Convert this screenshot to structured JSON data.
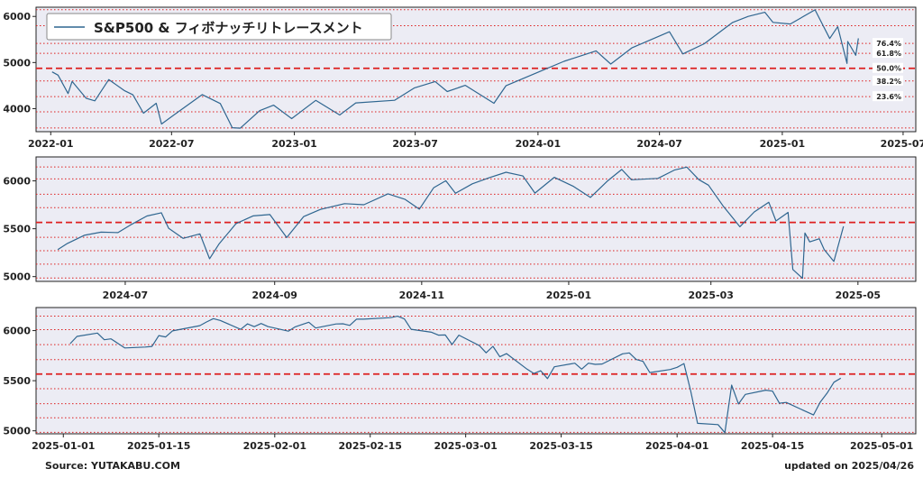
{
  "colors": {
    "line": "#2f6690",
    "level_line": "#dd1f1f",
    "panel_bg": "#ececf4"
  },
  "footer": {
    "source": "Source: YUTAKABU.COM",
    "updated": "updated on 2025/04/26"
  },
  "retracement_levels": [
    {
      "label": "76.4%",
      "value": 5414
    },
    {
      "label": "61.8%",
      "value": 5200
    },
    {
      "label": "50.0%",
      "value": 4875
    },
    {
      "label": "38.2%",
      "value": 4600
    },
    {
      "label": "23.6%",
      "value": 4260
    }
  ],
  "chart_data": [
    {
      "type": "line",
      "legend": "S&P500 & フィボナッチリトレースメント",
      "legend_position": "top-left",
      "xlim": [
        "2021-12-10",
        "2025-07-20"
      ],
      "ylim": [
        3500,
        6200
      ],
      "xticks": [
        {
          "date": "2022-01-01",
          "label": "2022-01"
        },
        {
          "date": "2022-07-01",
          "label": "2022-07"
        },
        {
          "date": "2023-01-01",
          "label": "2023-01"
        },
        {
          "date": "2023-07-01",
          "label": "2023-07"
        },
        {
          "date": "2024-01-01",
          "label": "2024-01"
        },
        {
          "date": "2024-07-01",
          "label": "2024-07"
        },
        {
          "date": "2025-01-01",
          "label": "2025-01"
        },
        {
          "date": "2025-07-01",
          "label": "2025-07"
        }
      ],
      "yticks": [
        4000,
        5000,
        6000
      ],
      "hlines": [
        {
          "value": 4875,
          "style": "dashed"
        },
        {
          "value": 5414,
          "style": "dotted"
        },
        {
          "value": 5200,
          "style": "dotted"
        },
        {
          "value": 4600,
          "style": "dotted"
        },
        {
          "value": 4260,
          "style": "dotted"
        },
        {
          "value": 6145,
          "style": "dotted"
        },
        {
          "value": 5800,
          "style": "dotted"
        },
        {
          "value": 3930,
          "style": "dotted"
        },
        {
          "value": 3580,
          "style": "dotted"
        }
      ],
      "level_labels": true,
      "points": [
        [
          "2022-01-03",
          4797
        ],
        [
          "2022-01-12",
          4726
        ],
        [
          "2022-01-27",
          4327
        ],
        [
          "2022-02-02",
          4589
        ],
        [
          "2022-02-23",
          4225
        ],
        [
          "2022-03-08",
          4170
        ],
        [
          "2022-03-29",
          4631
        ],
        [
          "2022-04-21",
          4394
        ],
        [
          "2022-05-04",
          4300
        ],
        [
          "2022-05-20",
          3901
        ],
        [
          "2022-06-08",
          4116
        ],
        [
          "2022-06-16",
          3667
        ],
        [
          "2022-07-08",
          3899
        ],
        [
          "2022-08-16",
          4305
        ],
        [
          "2022-09-12",
          4110
        ],
        [
          "2022-09-30",
          3586
        ],
        [
          "2022-10-12",
          3577
        ],
        [
          "2022-11-10",
          3956
        ],
        [
          "2022-12-01",
          4076
        ],
        [
          "2022-12-28",
          3783
        ],
        [
          "2023-02-02",
          4179
        ],
        [
          "2023-03-10",
          3861
        ],
        [
          "2023-04-03",
          4125
        ],
        [
          "2023-05-31",
          4180
        ],
        [
          "2023-06-30",
          4450
        ],
        [
          "2023-07-31",
          4588
        ],
        [
          "2023-08-18",
          4370
        ],
        [
          "2023-09-14",
          4505
        ],
        [
          "2023-10-27",
          4117
        ],
        [
          "2023-11-14",
          4496
        ],
        [
          "2023-12-29",
          4770
        ],
        [
          "2024-02-09",
          5027
        ],
        [
          "2024-03-28",
          5254
        ],
        [
          "2024-04-19",
          4967
        ],
        [
          "2024-05-21",
          5321
        ],
        [
          "2024-07-16",
          5667
        ],
        [
          "2024-08-05",
          5186
        ],
        [
          "2024-09-06",
          5408
        ],
        [
          "2024-10-18",
          5865
        ],
        [
          "2024-11-11",
          6001
        ],
        [
          "2024-12-06",
          6090
        ],
        [
          "2024-12-18",
          5872
        ],
        [
          "2025-01-13",
          5836
        ],
        [
          "2025-02-19",
          6144
        ],
        [
          "2025-03-13",
          5521
        ],
        [
          "2025-03-25",
          5777
        ],
        [
          "2025-04-08",
          4982
        ],
        [
          "2025-04-09",
          5456
        ],
        [
          "2025-04-21",
          5158
        ],
        [
          "2025-04-25",
          5525
        ]
      ]
    },
    {
      "type": "line",
      "xlim": [
        "2024-05-25",
        "2025-05-25"
      ],
      "ylim": [
        4950,
        6250
      ],
      "xticks": [
        {
          "date": "2024-07-01",
          "label": "2024-07"
        },
        {
          "date": "2024-09-01",
          "label": "2024-09"
        },
        {
          "date": "2024-11-01",
          "label": "2024-11"
        },
        {
          "date": "2025-01-01",
          "label": "2025-01"
        },
        {
          "date": "2025-03-01",
          "label": "2025-03"
        },
        {
          "date": "2025-05-01",
          "label": "2025-05"
        }
      ],
      "yticks": [
        5000,
        5500,
        6000
      ],
      "hlines": [
        {
          "value": 5566,
          "style": "dashed"
        },
        {
          "value": 6145,
          "style": "dotted"
        },
        {
          "value": 6020,
          "style": "dotted"
        },
        {
          "value": 5860,
          "style": "dotted"
        },
        {
          "value": 5720,
          "style": "dotted"
        },
        {
          "value": 5410,
          "style": "dotted"
        },
        {
          "value": 5270,
          "style": "dotted"
        },
        {
          "value": 5130,
          "style": "dotted"
        },
        {
          "value": 4985,
          "style": "dotted"
        }
      ],
      "points": [
        [
          "2024-06-03",
          5283
        ],
        [
          "2024-06-07",
          5347
        ],
        [
          "2024-06-14",
          5431
        ],
        [
          "2024-06-21",
          5464
        ],
        [
          "2024-06-28",
          5460
        ],
        [
          "2024-07-03",
          5537
        ],
        [
          "2024-07-10",
          5633
        ],
        [
          "2024-07-16",
          5667
        ],
        [
          "2024-07-19",
          5505
        ],
        [
          "2024-07-25",
          5399
        ],
        [
          "2024-08-01",
          5446
        ],
        [
          "2024-08-05",
          5186
        ],
        [
          "2024-08-09",
          5344
        ],
        [
          "2024-08-16",
          5554
        ],
        [
          "2024-08-23",
          5634
        ],
        [
          "2024-08-30",
          5648
        ],
        [
          "2024-09-06",
          5408
        ],
        [
          "2024-09-13",
          5626
        ],
        [
          "2024-09-20",
          5702
        ],
        [
          "2024-09-30",
          5762
        ],
        [
          "2024-10-08",
          5751
        ],
        [
          "2024-10-18",
          5865
        ],
        [
          "2024-10-25",
          5808
        ],
        [
          "2024-10-31",
          5705
        ],
        [
          "2024-11-06",
          5929
        ],
        [
          "2024-11-11",
          6001
        ],
        [
          "2024-11-15",
          5870
        ],
        [
          "2024-11-22",
          5969
        ],
        [
          "2024-11-29",
          6032
        ],
        [
          "2024-12-06",
          6090
        ],
        [
          "2024-12-13",
          6051
        ],
        [
          "2024-12-18",
          5872
        ],
        [
          "2024-12-26",
          6037
        ],
        [
          "2025-01-03",
          5942
        ],
        [
          "2025-01-10",
          5827
        ],
        [
          "2025-01-17",
          5997
        ],
        [
          "2025-01-23",
          6119
        ],
        [
          "2025-01-27",
          6012
        ],
        [
          "2025-02-07",
          6026
        ],
        [
          "2025-02-14",
          6114
        ],
        [
          "2025-02-19",
          6144
        ],
        [
          "2025-02-24",
          6013
        ],
        [
          "2025-02-28",
          5955
        ],
        [
          "2025-03-06",
          5739
        ],
        [
          "2025-03-10",
          5615
        ],
        [
          "2025-03-13",
          5521
        ],
        [
          "2025-03-19",
          5675
        ],
        [
          "2025-03-25",
          5777
        ],
        [
          "2025-03-28",
          5581
        ],
        [
          "2025-04-02",
          5671
        ],
        [
          "2025-04-04",
          5074
        ],
        [
          "2025-04-08",
          4982
        ],
        [
          "2025-04-09",
          5456
        ],
        [
          "2025-04-11",
          5363
        ],
        [
          "2025-04-15",
          5396
        ],
        [
          "2025-04-17",
          5283
        ],
        [
          "2025-04-21",
          5158
        ],
        [
          "2025-04-25",
          5525
        ]
      ]
    },
    {
      "type": "line",
      "xlim": [
        "2024-12-28",
        "2025-05-06"
      ],
      "ylim": [
        4970,
        6230
      ],
      "xticks": [
        {
          "date": "2025-01-01",
          "label": "2025-01-01"
        },
        {
          "date": "2025-01-15",
          "label": "2025-01-15"
        },
        {
          "date": "2025-02-01",
          "label": "2025-02-01"
        },
        {
          "date": "2025-02-15",
          "label": "2025-02-15"
        },
        {
          "date": "2025-03-01",
          "label": "2025-03-01"
        },
        {
          "date": "2025-03-15",
          "label": "2025-03-15"
        },
        {
          "date": "2025-04-01",
          "label": "2025-04-01"
        },
        {
          "date": "2025-04-15",
          "label": "2025-04-15"
        },
        {
          "date": "2025-05-01",
          "label": "2025-05-01"
        }
      ],
      "yticks": [
        5000,
        5500,
        6000
      ],
      "hlines": [
        {
          "value": 5566,
          "style": "dashed"
        },
        {
          "value": 6145,
          "style": "dotted"
        },
        {
          "value": 6010,
          "style": "dotted"
        },
        {
          "value": 5860,
          "style": "dotted"
        },
        {
          "value": 5710,
          "style": "dotted"
        },
        {
          "value": 5420,
          "style": "dotted"
        },
        {
          "value": 5270,
          "style": "dotted"
        },
        {
          "value": 5130,
          "style": "dotted"
        },
        {
          "value": 4985,
          "style": "dotted"
        }
      ],
      "points": [
        [
          "2025-01-02",
          5869
        ],
        [
          "2025-01-03",
          5942
        ],
        [
          "2025-01-06",
          5975
        ],
        [
          "2025-01-07",
          5909
        ],
        [
          "2025-01-08",
          5918
        ],
        [
          "2025-01-10",
          5827
        ],
        [
          "2025-01-13",
          5836
        ],
        [
          "2025-01-14",
          5842
        ],
        [
          "2025-01-15",
          5950
        ],
        [
          "2025-01-16",
          5937
        ],
        [
          "2025-01-17",
          5997
        ],
        [
          "2025-01-21",
          6049
        ],
        [
          "2025-01-22",
          6086
        ],
        [
          "2025-01-23",
          6119
        ],
        [
          "2025-01-24",
          6101
        ],
        [
          "2025-01-27",
          6012
        ],
        [
          "2025-01-28",
          6067
        ],
        [
          "2025-01-29",
          6039
        ],
        [
          "2025-01-30",
          6071
        ],
        [
          "2025-01-31",
          6040
        ],
        [
          "2025-02-03",
          5994
        ],
        [
          "2025-02-04",
          6037
        ],
        [
          "2025-02-05",
          6061
        ],
        [
          "2025-02-06",
          6083
        ],
        [
          "2025-02-07",
          6026
        ],
        [
          "2025-02-10",
          6066
        ],
        [
          "2025-02-11",
          6068
        ],
        [
          "2025-02-12",
          6052
        ],
        [
          "2025-02-13",
          6115
        ],
        [
          "2025-02-14",
          6114
        ],
        [
          "2025-02-18",
          6129
        ],
        [
          "2025-02-19",
          6144
        ],
        [
          "2025-02-20",
          6117
        ],
        [
          "2025-02-21",
          6013
        ],
        [
          "2025-02-24",
          5983
        ],
        [
          "2025-02-25",
          5955
        ],
        [
          "2025-02-26",
          5956
        ],
        [
          "2025-02-27",
          5861
        ],
        [
          "2025-02-28",
          5955
        ],
        [
          "2025-03-03",
          5850
        ],
        [
          "2025-03-04",
          5778
        ],
        [
          "2025-03-05",
          5843
        ],
        [
          "2025-03-06",
          5739
        ],
        [
          "2025-03-07",
          5770
        ],
        [
          "2025-03-10",
          5615
        ],
        [
          "2025-03-11",
          5572
        ],
        [
          "2025-03-12",
          5599
        ],
        [
          "2025-03-13",
          5521
        ],
        [
          "2025-03-14",
          5639
        ],
        [
          "2025-03-17",
          5675
        ],
        [
          "2025-03-18",
          5615
        ],
        [
          "2025-03-19",
          5675
        ],
        [
          "2025-03-20",
          5663
        ],
        [
          "2025-03-21",
          5667
        ],
        [
          "2025-03-24",
          5768
        ],
        [
          "2025-03-25",
          5777
        ],
        [
          "2025-03-26",
          5712
        ],
        [
          "2025-03-27",
          5693
        ],
        [
          "2025-03-28",
          5581
        ],
        [
          "2025-03-31",
          5612
        ],
        [
          "2025-04-01",
          5633
        ],
        [
          "2025-04-02",
          5671
        ],
        [
          "2025-04-03",
          5397
        ],
        [
          "2025-04-04",
          5074
        ],
        [
          "2025-04-07",
          5062
        ],
        [
          "2025-04-08",
          4982
        ],
        [
          "2025-04-09",
          5456
        ],
        [
          "2025-04-10",
          5268
        ],
        [
          "2025-04-11",
          5363
        ],
        [
          "2025-04-14",
          5406
        ],
        [
          "2025-04-15",
          5396
        ],
        [
          "2025-04-16",
          5275
        ],
        [
          "2025-04-17",
          5283
        ],
        [
          "2025-04-21",
          5158
        ],
        [
          "2025-04-22",
          5288
        ],
        [
          "2025-04-23",
          5376
        ],
        [
          "2025-04-24",
          5485
        ],
        [
          "2025-04-25",
          5525
        ]
      ]
    }
  ]
}
